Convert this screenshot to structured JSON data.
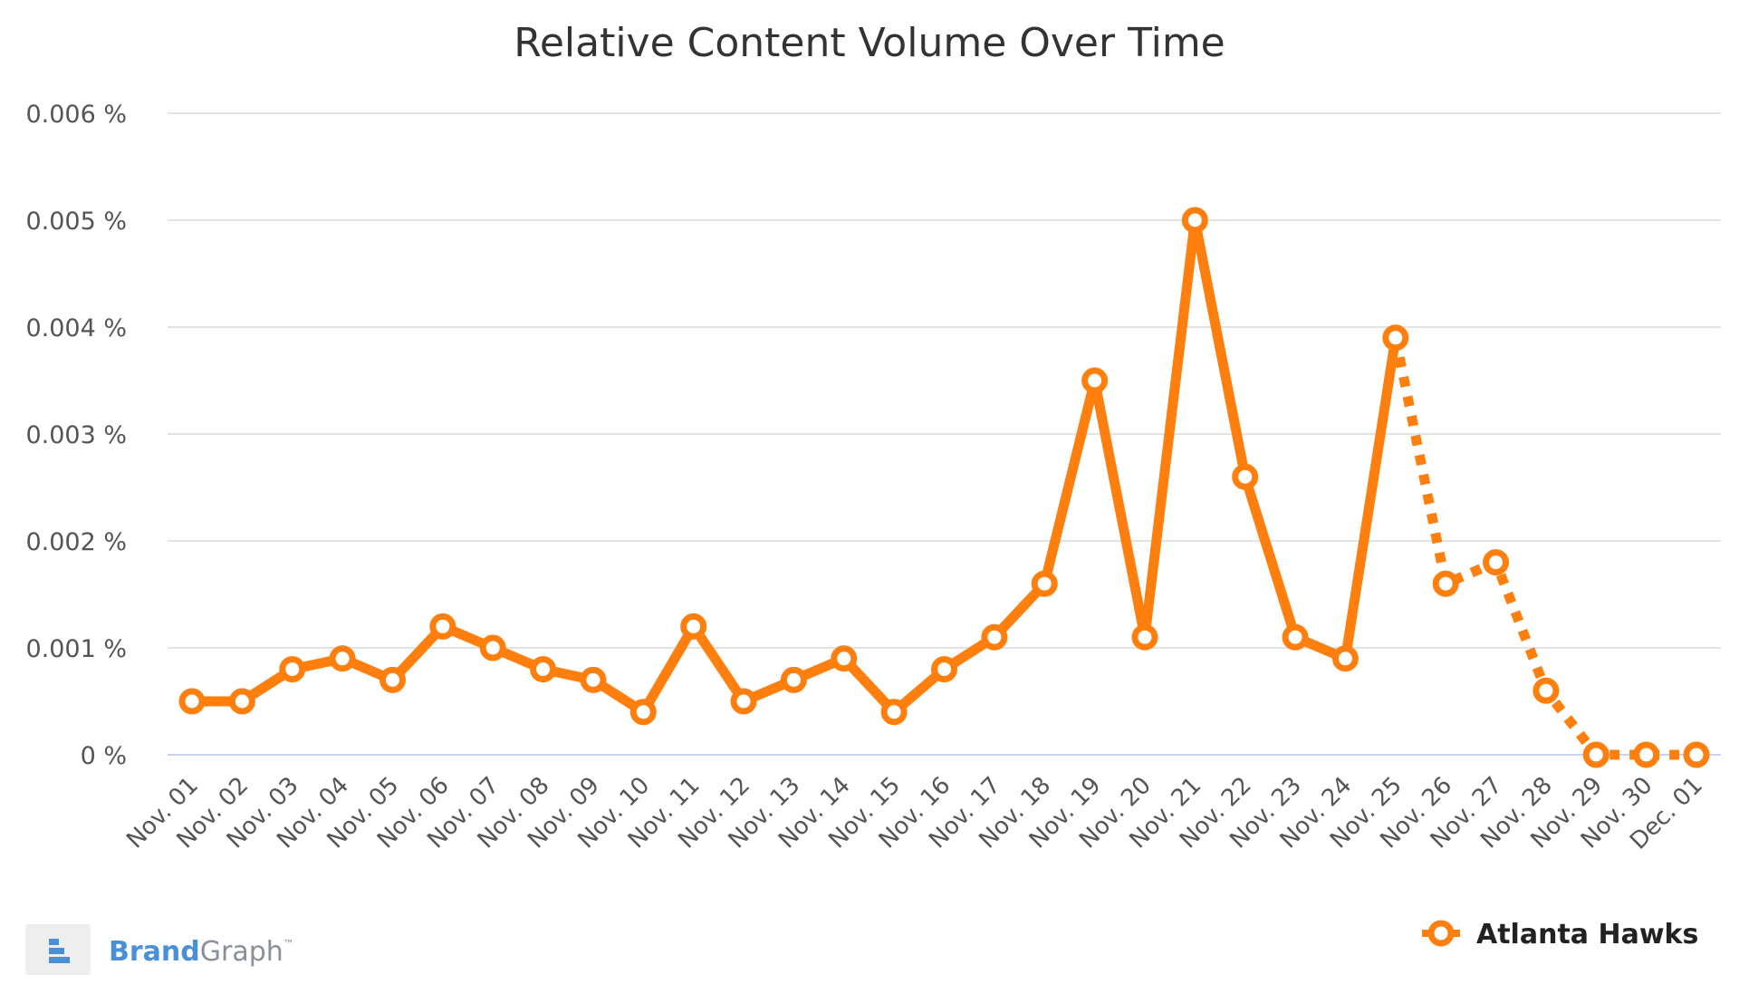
{
  "chart_data": {
    "type": "line",
    "title": "Relative Content Volume Over Time",
    "xlabel": "",
    "ylabel": "",
    "x": [
      "Nov. 01",
      "Nov. 02",
      "Nov. 03",
      "Nov. 04",
      "Nov. 05",
      "Nov. 06",
      "Nov. 07",
      "Nov. 08",
      "Nov. 09",
      "Nov. 10",
      "Nov. 11",
      "Nov. 12",
      "Nov. 13",
      "Nov. 14",
      "Nov. 15",
      "Nov. 16",
      "Nov. 17",
      "Nov. 18",
      "Nov. 19",
      "Nov. 20",
      "Nov. 21",
      "Nov. 22",
      "Nov. 23",
      "Nov. 24",
      "Nov. 25",
      "Nov. 26",
      "Nov. 27",
      "Nov. 28",
      "Nov. 29",
      "Nov. 30",
      "Dec. 01"
    ],
    "y_ticks": [
      "0 %",
      "0.001 %",
      "0.002 %",
      "0.003 %",
      "0.004 %",
      "0.005 %",
      "0.006 %"
    ],
    "ylim": [
      0,
      0.006
    ],
    "y_unit": "%",
    "grid": true,
    "legend_position": "bottom-right",
    "series": [
      {
        "name": "Atlanta Hawks",
        "color": "#ff7f0e",
        "values": [
          0.0005,
          0.0005,
          0.0008,
          0.0009,
          0.0007,
          0.0012,
          0.001,
          0.0008,
          0.0007,
          0.0004,
          0.0012,
          0.0005,
          0.0007,
          0.0009,
          0.0004,
          0.0008,
          0.0011,
          0.0016,
          0.0035,
          0.0011,
          0.005,
          0.0026,
          0.0011,
          0.0009,
          0.0039,
          0.0016,
          0.0018,
          0.0006,
          0.0,
          0.0,
          0.0
        ],
        "solid_through": "Nov. 25",
        "dotted_from": "Nov. 25"
      }
    ]
  },
  "branding": {
    "logo_brand": "Brand",
    "logo_graph": "Graph",
    "logo_tm": "™",
    "brand_color": "#4a90d9",
    "graph_color": "#8a9099"
  }
}
